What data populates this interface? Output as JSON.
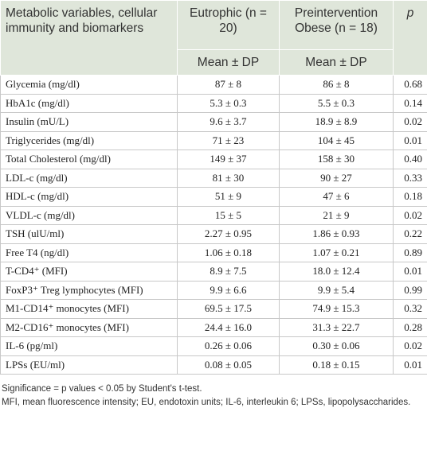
{
  "table": {
    "header": [
      "Metabolic variables, cellular immunity and biomarkers",
      "Eutrophic (n = 20)",
      "Preintervention Obese (n = 18)",
      "p"
    ],
    "subheader": [
      "Mean ± DP",
      "Mean ± DP"
    ],
    "rows": [
      [
        "Glycemia (mg/dl)",
        "87 ± 8",
        "86 ± 8",
        "0.68"
      ],
      [
        "HbA1c (mg/dl)",
        "5.3 ± 0.3",
        "5.5 ± 0.3",
        "0.14"
      ],
      [
        "Insulin (mU/L)",
        "9.6 ± 3.7",
        "18.9 ± 8.9",
        "0.02"
      ],
      [
        "Triglycerides (mg/dl)",
        "71 ± 23",
        "104 ± 45",
        "0.01"
      ],
      [
        "Total Cholesterol (mg/dl)",
        "149 ± 37",
        "158 ± 30",
        "0.40"
      ],
      [
        "LDL-c (mg/dl)",
        "81 ± 30",
        "90 ± 27",
        "0.33"
      ],
      [
        "HDL-c (mg/dl)",
        "51 ± 9",
        "47 ± 6",
        "0.18"
      ],
      [
        "VLDL-c (mg/dl)",
        "15 ± 5",
        "21 ± 9",
        "0.02"
      ],
      [
        "TSH (ulU/ml)",
        "2.27 ± 0.95",
        "1.86 ± 0.93",
        "0.22"
      ],
      [
        "Free T4 (ng/dl)",
        "1.06 ± 0.18",
        "1.07 ± 0.21",
        "0.89"
      ],
      [
        "T-CD4⁺ (MFI)",
        "8.9 ± 7.5",
        "18.0 ± 12.4",
        "0.01"
      ],
      [
        "FoxP3⁺ Treg lymphocytes (MFI)",
        "9.9 ± 6.6",
        "9.9 ± 5.4",
        "0.99"
      ],
      [
        "M1-CD14⁺ monocytes (MFI)",
        "69.5 ± 17.5",
        "74.9 ± 15.3",
        "0.32"
      ],
      [
        "M2-CD16⁺ monocytes (MFI)",
        "24.4 ± 16.0",
        "31.3 ± 22.7",
        "0.28"
      ],
      [
        "IL-6 (pg/ml)",
        "0.26 ± 0.06",
        "0.30 ± 0.06",
        "0.02"
      ],
      [
        "LPSs (EU/ml)",
        "0.08 ± 0.05",
        "0.18 ± 0.15",
        "0.01"
      ]
    ]
  },
  "footnotes": [
    "Significance = p values < 0.05 by Student's t-test.",
    "MFI, mean fluorescence intensity; EU, endotoxin units; IL-6, interleukin 6; LPSs, lipopolysaccharides."
  ]
}
